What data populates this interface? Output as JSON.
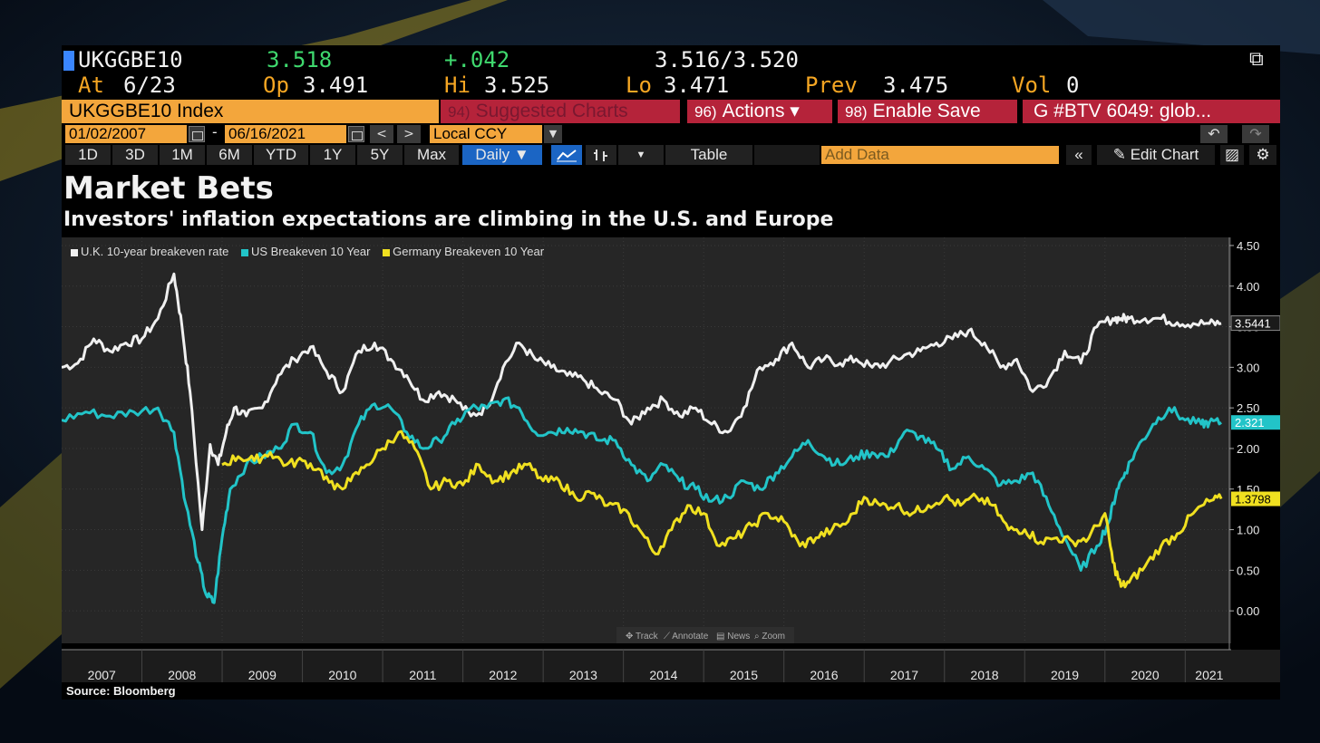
{
  "quote": {
    "ticker": "UKGGBE10",
    "last": "3.518",
    "change": "+.042",
    "bid_ask": "3.516/3.520",
    "at_label": "At",
    "at_value": "6/23",
    "open_label": "Op",
    "open_value": "3.491",
    "high_label": "Hi",
    "high_value": "3.525",
    "low_label": "Lo",
    "low_value": "3.471",
    "prev_label": "Prev",
    "prev_value": "3.475",
    "vol_label": "Vol",
    "vol_value": "0"
  },
  "actions": {
    "index_label": "UKGGBE10 Index",
    "suggested_num": "94)",
    "suggested_label": "Suggested Charts",
    "actions_num": "96)",
    "actions_label": "Actions ▾",
    "save_num": "98)",
    "save_label": "Enable Save",
    "btv_label": "G #BTV 6049: glob..."
  },
  "dates": {
    "start": "01/02/2007",
    "separator": "-",
    "end": "06/16/2021",
    "currency": "Local CCY"
  },
  "periods": [
    "1D",
    "3D",
    "1M",
    "6M",
    "YTD",
    "1Y",
    "5Y",
    "Max"
  ],
  "period_selected": "Daily ▼",
  "table_label": "Table",
  "add_data_placeholder": "Add Data",
  "edit_chart_label": "Edit Chart",
  "chart_data": {
    "type": "line",
    "title": "Market Bets",
    "subtitle": "Investors' inflation expectations are climbing in the U.S. and Europe",
    "source": "Source: Bloomberg",
    "ylim": [
      -0.4,
      4.6
    ],
    "y_ticks": [
      "4.50",
      "4.00",
      "3.50",
      "3.00",
      "2.50",
      "2.00",
      "1.50",
      "1.00",
      "0.50",
      "0.00"
    ],
    "y_tick_values": [
      4.5,
      4.0,
      3.5,
      3.0,
      2.5,
      2.0,
      1.5,
      1.0,
      0.5,
      0.0
    ],
    "x_tick_labels": [
      "2007",
      "2008",
      "2009",
      "2010",
      "2011",
      "2012",
      "2013",
      "2014",
      "2015",
      "2016",
      "2017",
      "2018",
      "2019",
      "2020",
      "2021"
    ],
    "x_tick_values": [
      2007.5,
      2008.5,
      2009.5,
      2010.5,
      2011.5,
      2012.5,
      2013.5,
      2014.5,
      2015.5,
      2016.5,
      2017.5,
      2018.5,
      2019.5,
      2020.5,
      2021.3
    ],
    "xlim": [
      2007.0,
      2021.55
    ],
    "grid": true,
    "legend_position": "top-left",
    "series": [
      {
        "name": "U.K. 10-year breakeven rate",
        "color": "#f0f0f0",
        "last_label": "3.5441",
        "label_value": 3.5441,
        "x": [
          2007.0,
          2007.2,
          2007.4,
          2007.6,
          2007.8,
          2008.0,
          2008.2,
          2008.4,
          2008.5,
          2008.6,
          2008.75,
          2008.85,
          2008.95,
          2009.05,
          2009.15,
          2009.3,
          2009.5,
          2009.7,
          2009.9,
          2010.1,
          2010.3,
          2010.5,
          2010.7,
          2010.9,
          2011.1,
          2011.3,
          2011.5,
          2011.7,
          2011.9,
          2012.1,
          2012.3,
          2012.5,
          2012.7,
          2012.9,
          2013.1,
          2013.3,
          2013.5,
          2013.7,
          2013.9,
          2014.1,
          2014.3,
          2014.5,
          2014.7,
          2014.9,
          2015.1,
          2015.3,
          2015.5,
          2015.7,
          2015.9,
          2016.1,
          2016.3,
          2016.5,
          2016.7,
          2016.9,
          2017.1,
          2017.3,
          2017.5,
          2017.7,
          2017.9,
          2018.1,
          2018.3,
          2018.5,
          2018.7,
          2018.9,
          2019.1,
          2019.3,
          2019.5,
          2019.7,
          2019.9,
          2020.1,
          2020.2,
          2020.3,
          2020.5,
          2020.7,
          2020.9,
          2021.1,
          2021.3,
          2021.45
        ],
        "y": [
          3.0,
          3.05,
          3.35,
          3.2,
          3.3,
          3.35,
          3.6,
          4.15,
          3.5,
          2.7,
          1.0,
          2.05,
          1.8,
          2.2,
          2.5,
          2.4,
          2.5,
          2.9,
          3.1,
          3.25,
          2.95,
          2.7,
          3.2,
          3.3,
          3.1,
          2.9,
          2.6,
          2.7,
          2.6,
          2.4,
          2.5,
          3.0,
          3.3,
          3.1,
          3.0,
          2.9,
          2.85,
          2.7,
          2.6,
          2.3,
          2.5,
          2.6,
          2.4,
          2.5,
          2.3,
          2.2,
          2.5,
          3.0,
          3.1,
          3.3,
          3.0,
          3.1,
          3.05,
          3.1,
          3.0,
          3.05,
          3.15,
          3.2,
          3.3,
          3.35,
          3.45,
          3.3,
          3.0,
          3.1,
          2.7,
          2.85,
          3.2,
          3.05,
          3.5,
          3.6,
          3.6,
          3.6,
          3.6,
          3.6,
          3.55,
          3.54,
          3.54,
          3.54
        ]
      },
      {
        "name": "US Breakeven 10 Year",
        "color": "#22c4c8",
        "last_label": "2.321",
        "label_value": 2.321,
        "x": [
          2007.0,
          2007.3,
          2007.6,
          2007.9,
          2008.2,
          2008.4,
          2008.55,
          2008.7,
          2008.8,
          2008.9,
          2009.0,
          2009.1,
          2009.3,
          2009.5,
          2009.7,
          2009.9,
          2010.1,
          2010.3,
          2010.5,
          2010.7,
          2010.9,
          2011.1,
          2011.3,
          2011.5,
          2011.7,
          2011.9,
          2012.1,
          2012.3,
          2012.5,
          2012.7,
          2012.9,
          2013.1,
          2013.3,
          2013.5,
          2013.7,
          2013.9,
          2014.1,
          2014.3,
          2014.5,
          2014.7,
          2014.9,
          2015.1,
          2015.3,
          2015.5,
          2015.7,
          2015.9,
          2016.1,
          2016.3,
          2016.5,
          2016.7,
          2016.9,
          2017.1,
          2017.3,
          2017.5,
          2017.7,
          2017.9,
          2018.1,
          2018.3,
          2018.5,
          2018.7,
          2018.9,
          2019.1,
          2019.3,
          2019.5,
          2019.7,
          2019.9,
          2020.05,
          2020.15,
          2020.25,
          2020.4,
          2020.6,
          2020.8,
          2021.0,
          2021.2,
          2021.3,
          2021.45
        ],
        "y": [
          2.35,
          2.45,
          2.4,
          2.45,
          2.5,
          2.2,
          1.3,
          0.6,
          0.2,
          0.1,
          0.9,
          1.5,
          1.8,
          1.9,
          2.0,
          2.3,
          2.2,
          1.7,
          1.8,
          2.3,
          2.55,
          2.5,
          2.2,
          2.0,
          2.1,
          2.3,
          2.5,
          2.5,
          2.6,
          2.5,
          2.2,
          2.2,
          2.25,
          2.2,
          2.1,
          2.1,
          1.8,
          1.6,
          1.8,
          1.6,
          1.5,
          1.35,
          1.4,
          1.6,
          1.5,
          1.7,
          1.9,
          2.1,
          1.9,
          1.8,
          1.9,
          1.95,
          1.9,
          2.2,
          2.15,
          2.0,
          1.75,
          1.9,
          1.75,
          1.55,
          1.6,
          1.7,
          1.3,
          0.9,
          0.5,
          0.8,
          1.1,
          1.5,
          1.7,
          2.0,
          2.3,
          2.5,
          2.35,
          2.3,
          2.32,
          2.32
        ]
      },
      {
        "name": "Germany Breakeven 10 Year",
        "color": "#f0e020",
        "last_label": "1.3798",
        "label_value": 1.3798,
        "x": [
          2009.0,
          2009.2,
          2009.4,
          2009.6,
          2009.8,
          2010.0,
          2010.2,
          2010.4,
          2010.6,
          2010.8,
          2011.0,
          2011.2,
          2011.4,
          2011.6,
          2011.8,
          2012.0,
          2012.2,
          2012.4,
          2012.6,
          2012.8,
          2013.0,
          2013.2,
          2013.4,
          2013.6,
          2013.8,
          2014.0,
          2014.2,
          2014.4,
          2014.6,
          2014.8,
          2015.0,
          2015.2,
          2015.4,
          2015.6,
          2015.8,
          2016.0,
          2016.2,
          2016.4,
          2016.6,
          2016.8,
          2017.0,
          2017.2,
          2017.4,
          2017.6,
          2017.8,
          2018.0,
          2018.2,
          2018.4,
          2018.6,
          2018.8,
          2019.0,
          2019.2,
          2019.4,
          2019.6,
          2019.8,
          2020.0,
          2020.1,
          2020.2,
          2020.3,
          2020.5,
          2020.7,
          2020.9,
          2021.1,
          2021.3,
          2021.45
        ],
        "y": [
          1.8,
          1.9,
          1.85,
          1.95,
          1.8,
          1.85,
          1.75,
          1.5,
          1.6,
          1.8,
          2.0,
          2.2,
          2.0,
          1.5,
          1.6,
          1.55,
          1.8,
          1.6,
          1.7,
          1.8,
          1.6,
          1.6,
          1.4,
          1.45,
          1.3,
          1.25,
          1.0,
          0.7,
          1.0,
          1.3,
          1.2,
          0.8,
          0.9,
          1.05,
          1.2,
          1.1,
          0.8,
          0.9,
          1.0,
          1.1,
          1.4,
          1.3,
          1.3,
          1.2,
          1.3,
          1.4,
          1.3,
          1.4,
          1.3,
          1.0,
          1.0,
          0.85,
          0.9,
          0.85,
          0.9,
          1.2,
          0.6,
          0.3,
          0.35,
          0.55,
          0.8,
          0.95,
          1.2,
          1.35,
          1.38
        ]
      }
    ]
  },
  "chart_toolbar": {
    "track": "Track",
    "annotate": "Annotate",
    "news": "News",
    "zoom": "Zoom"
  },
  "colors": {
    "amber": "#f3a63c",
    "red_button": "#b5233a",
    "selected_blue": "#1b65c4",
    "positive_green": "#3fd96e"
  }
}
